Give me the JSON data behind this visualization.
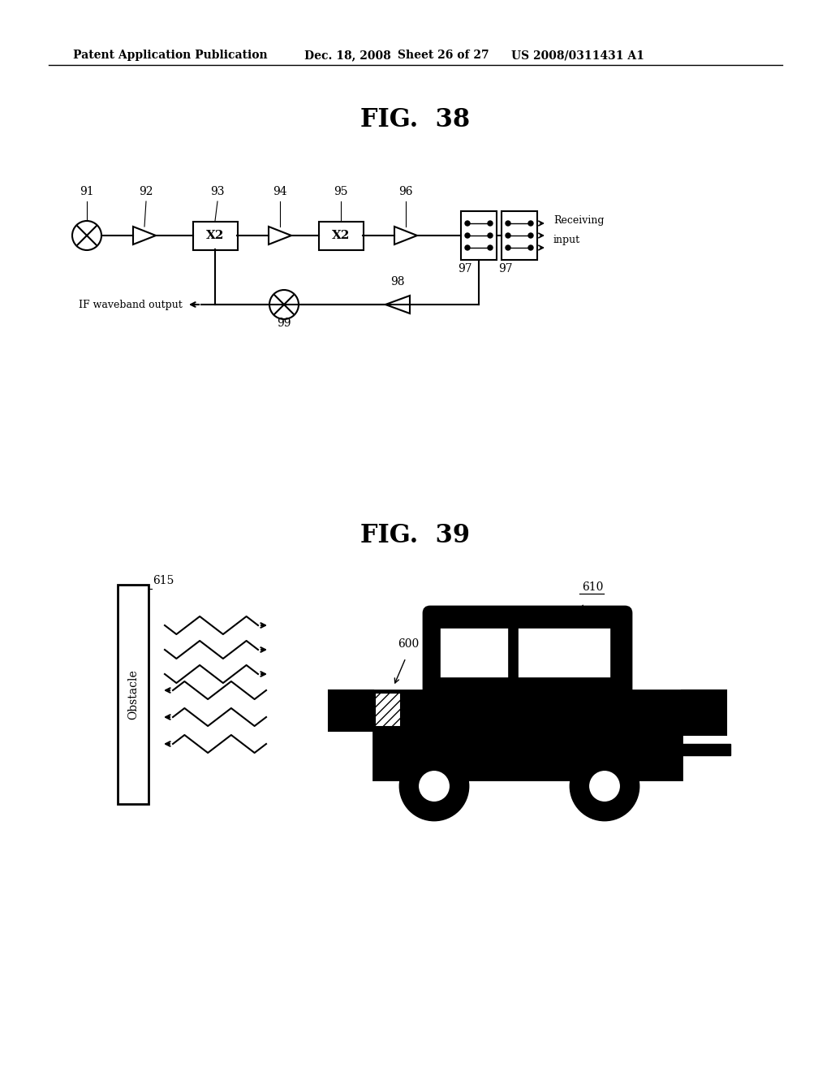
{
  "bg_color": "#ffffff",
  "header_text": "Patent Application Publication",
  "header_date": "Dec. 18, 2008",
  "header_sheet": "Sheet 26 of 27",
  "header_patent": "US 2008/0311431 A1",
  "fig38_title": "FIG.  38",
  "fig39_title": "FIG.  39",
  "text_color": "#000000",
  "line_color": "#000000"
}
